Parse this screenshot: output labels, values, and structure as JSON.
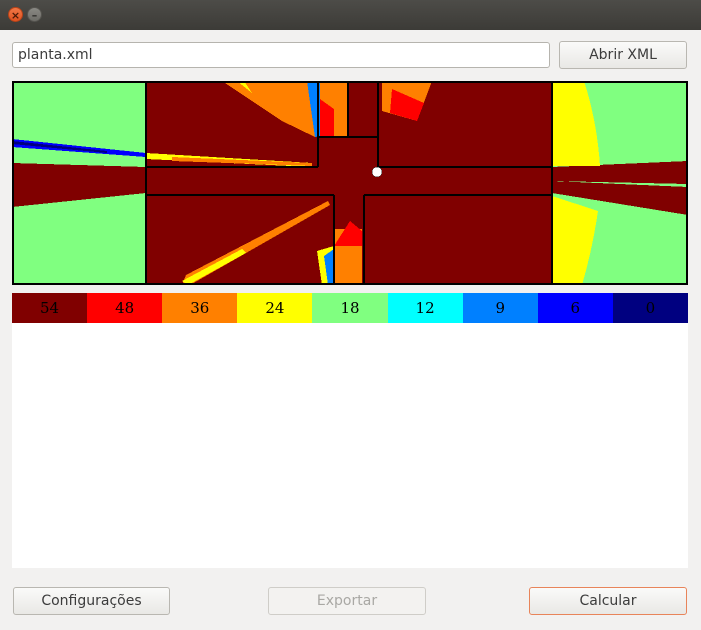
{
  "window": {
    "controls": [
      {
        "icon": "close-icon",
        "glyph": "×"
      },
      {
        "icon": "minimize-icon",
        "glyph": "–"
      }
    ]
  },
  "toolbar": {
    "file_value": "planta.xml",
    "open_label": "Abrir XML"
  },
  "legend": [
    {
      "label": "54",
      "color": "#800000"
    },
    {
      "label": "48",
      "color": "#ff0000"
    },
    {
      "label": "36",
      "color": "#ff8000"
    },
    {
      "label": "24",
      "color": "#ffff00"
    },
    {
      "label": "18",
      "color": "#80ff80"
    },
    {
      "label": "12",
      "color": "#00ffff"
    },
    {
      "label": "9",
      "color": "#0080ff"
    },
    {
      "label": "6",
      "color": "#0000ff"
    },
    {
      "label": "0",
      "color": "#000080"
    }
  ],
  "footer": {
    "settings_label": "Configurações",
    "export_label": "Exportar",
    "calculate_label": "Calcular"
  }
}
